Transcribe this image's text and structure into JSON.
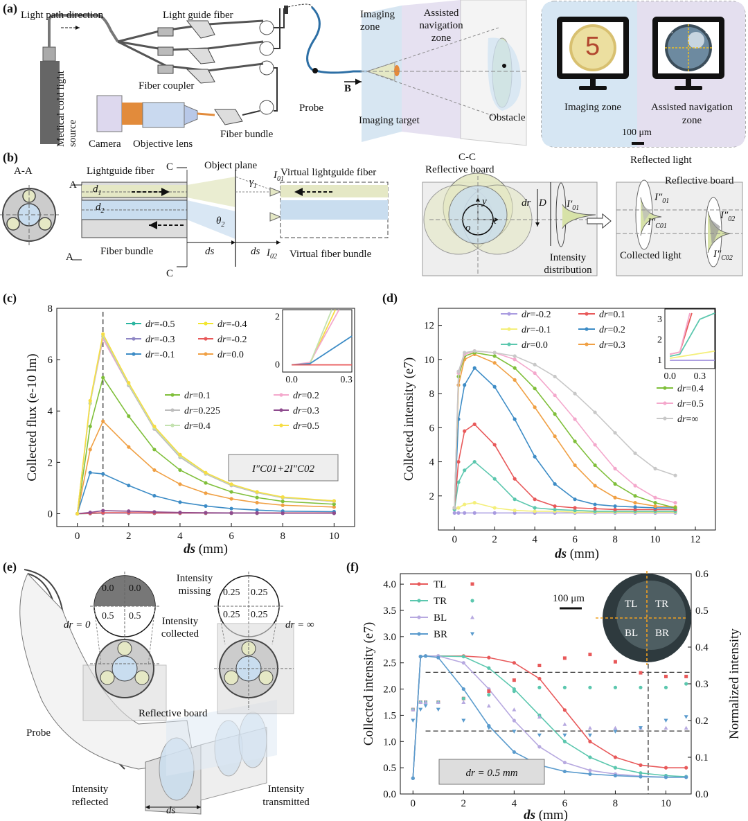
{
  "panel_labels": {
    "a": "(a)",
    "b": "(b)",
    "c": "(c)",
    "d": "(d)",
    "e": "(e)",
    "f": "(f)"
  },
  "panel_a": {
    "light_path_direction": "Light path direction",
    "light_guide_fiber": "Light guide fiber",
    "medical_cold_light_source": "Medical cold light source",
    "fiber_coupler": "Fiber coupler",
    "camera": "Camera",
    "objective_lens": "Objective lens",
    "fiber_bundle": "Fiber bundle",
    "probe": "Probe",
    "b_marker": "B",
    "imaging_zone": "Imaging zone",
    "assisted_navigation_zone": "Assisted navigation zone",
    "imaging_target": "Imaging target",
    "obstacle": "Obstacle",
    "monitor_imaging_zone": "Imaging zone",
    "monitor_assisted_navigation_zone": "Assisted navigation zone",
    "digit": "5",
    "quadrants": [
      "TL",
      "TR",
      "BL",
      "BR"
    ],
    "scale_bar": "100 μm"
  },
  "panel_b": {
    "aa": "A-A",
    "a_marker": "A",
    "c_marker": "C",
    "lightguide_fiber": "Lightguide fiber",
    "object_plane": "Object plane",
    "virtual_lightguide_fiber": "Virtual lightguide fiber",
    "d1": "d",
    "d1_sub": "1",
    "d2": "d",
    "d2_sub": "2",
    "gamma": "γ",
    "gamma_sub": "1",
    "theta": "θ",
    "theta_sub": "2",
    "i01": "I",
    "i01_sub": "01",
    "i02": "I",
    "i02_sub": "02",
    "ds": "ds",
    "fiber_bundle": "Fiber bundle",
    "virtual_fiber_bundle": "Virtual fiber bundle",
    "cc": "C-C",
    "reflective_board": "Reflective board",
    "dr": "dr",
    "D": "D",
    "y": "y",
    "x": "x",
    "o": "o",
    "i_prime_01": "I′",
    "i_prime_01_sub": "01",
    "intensity_distribution": "Intensity distribution",
    "reflected_light": "Reflected light",
    "reflective_board_2": "Reflective board",
    "i_dd_01": "I″",
    "i_dd_01_sub": "01",
    "i_dd_02": "I″",
    "i_dd_02_sub": "02",
    "i_dd_c01": "I″",
    "i_dd_c01_sub": "C01",
    "i_dd_c02": "I″",
    "i_dd_c02_sub": "C02",
    "collected_light": "Collected light"
  },
  "panel_e": {
    "intensity_missing": "Intensity missing",
    "intensity_collected": "Intensity collected",
    "dr0": "dr = 0",
    "drinf": "dr = ∞",
    "q_left": [
      "0.0",
      "0.0",
      "0.5",
      "0.5"
    ],
    "q_right": [
      "0.25",
      "0.25",
      "0.25",
      "0.25"
    ],
    "reflective_board": "Reflective board",
    "probe": "Probe",
    "intensity_reflected": "Intensity reflected",
    "intensity_transmitted": "Intensity transmitted",
    "ds": "ds"
  },
  "chart_data": [
    {
      "id": "c",
      "type": "line",
      "xlabel": "ds (mm)",
      "ylabel": "Collected flux (e-10 lm)",
      "xlim": [
        -0.8,
        10.8
      ],
      "ylim": [
        -0.5,
        8
      ],
      "xticks": [
        0,
        2,
        4,
        6,
        8,
        10
      ],
      "yticks": [
        0,
        2,
        4,
        6,
        8
      ],
      "vline": 1,
      "annotation": "I″C01+2I″C02",
      "series": [
        {
          "name": "dr=-0.5",
          "color": "#2bb5a0",
          "values": [
            0,
            0.01,
            0.02,
            0.02,
            0.02,
            0.02,
            0.02,
            0.02,
            0.02,
            0.02,
            0.02
          ]
        },
        {
          "name": "dr=-0.4",
          "color": "#f2e62f",
          "values": [
            0,
            0.01,
            0.02,
            0.02,
            0.02,
            0.02,
            0.02,
            0.02,
            0.02,
            0.02,
            0.02
          ]
        },
        {
          "name": "dr=-0.3",
          "color": "#8e86c4",
          "values": [
            0,
            0.01,
            0.02,
            0.02,
            0.02,
            0.02,
            0.02,
            0.02,
            0.02,
            0.02,
            0.02
          ]
        },
        {
          "name": "dr=-0.2",
          "color": "#e8595a",
          "values": [
            0,
            0.02,
            0.04,
            0.04,
            0.03,
            0.03,
            0.03,
            0.03,
            0.03,
            0.03,
            0.03
          ]
        },
        {
          "name": "dr=-0.1",
          "color": "#3d8cc6",
          "values": [
            0,
            1.6,
            1.55,
            1.1,
            0.7,
            0.45,
            0.3,
            0.2,
            0.14,
            0.1,
            0.08
          ]
        },
        {
          "name": "dr=0.0",
          "color": "#f0a044",
          "values": [
            0,
            2.5,
            3.6,
            2.6,
            1.7,
            1.15,
            0.8,
            0.58,
            0.43,
            0.33,
            0.26
          ]
        },
        {
          "name": "dr=0.1",
          "color": "#7fbf3a",
          "values": [
            0,
            3.4,
            5.3,
            3.8,
            2.5,
            1.7,
            1.2,
            0.85,
            0.63,
            0.48,
            0.37
          ]
        },
        {
          "name": "dr=0.2",
          "color": "#f4a8cc",
          "values": [
            0,
            4.3,
            6.8,
            5.0,
            3.3,
            2.2,
            1.55,
            1.1,
            0.82,
            0.62,
            0.48
          ]
        },
        {
          "name": "dr=0.225",
          "color": "#bdbdbd",
          "values": [
            0,
            4.3,
            6.9,
            5.0,
            3.3,
            2.2,
            1.55,
            1.1,
            0.82,
            0.62,
            0.48
          ]
        },
        {
          "name": "dr=0.3",
          "color": "#8e4b8e",
          "values": [
            0,
            0.05,
            0.12,
            0.1,
            0.07,
            0.05,
            0.04,
            0.03,
            0.03,
            0.02,
            0.02
          ]
        },
        {
          "name": "dr=0.4",
          "color": "#c4e2b0",
          "values": [
            0,
            4.3,
            6.95,
            5.05,
            3.35,
            2.25,
            1.58,
            1.13,
            0.84,
            0.63,
            0.5
          ]
        },
        {
          "name": "dr=0.5",
          "color": "#f6dd44",
          "values": [
            0,
            4.4,
            7.0,
            5.1,
            3.4,
            2.3,
            1.6,
            1.15,
            0.85,
            0.65,
            0.5
          ]
        }
      ],
      "x": [
        0,
        0.5,
        1,
        2,
        3,
        4,
        5,
        6,
        7,
        8,
        10
      ],
      "inset": {
        "xticks": [
          "0.0",
          "0.3"
        ],
        "yticks": [
          "0",
          "2"
        ],
        "xlim": [
          -0.05,
          0.33
        ],
        "ylim": [
          -0.3,
          2.3
        ]
      },
      "legend_left": [
        "dr=-0.5",
        "dr=-0.3",
        "dr=-0.1"
      ],
      "legend_right": [
        "dr=-0.4",
        "dr=-0.2",
        "dr=0.0"
      ],
      "legend_mid_left": [
        "dr=0.1",
        "dr=0.225",
        "dr=0.4"
      ],
      "legend_mid_right": [
        "dr=0.2",
        "dr=0.3",
        "dr=0.5"
      ]
    },
    {
      "id": "d",
      "type": "line",
      "xlabel": "ds (mm)",
      "ylabel": "Collected intensity (e7)",
      "xlim": [
        -0.8,
        13
      ],
      "ylim": [
        0,
        13
      ],
      "xticks": [
        0,
        2,
        4,
        6,
        8,
        10,
        12
      ],
      "yticks": [
        2,
        4,
        6,
        8,
        10,
        12
      ],
      "x": [
        0,
        0.2,
        0.5,
        1,
        2,
        3,
        4,
        5,
        6,
        7,
        8,
        9,
        10,
        11
      ],
      "series": [
        {
          "name": "dr=-0.2",
          "color": "#a99be0",
          "values": [
            1.0,
            1.0,
            1.0,
            1.0,
            1.0,
            1.0,
            1.0,
            1.0,
            1.0,
            1.0,
            1.0,
            1.0,
            1.0,
            1.0
          ]
        },
        {
          "name": "dr=-0.1",
          "color": "#f4ef7a",
          "values": [
            1.2,
            1.3,
            1.5,
            1.6,
            1.3,
            1.15,
            1.1,
            1.1,
            1.05,
            1.05,
            1.05,
            1.05,
            1.05,
            1.05
          ]
        },
        {
          "name": "dr=0.0",
          "color": "#5bc7ae",
          "values": [
            1.2,
            2.8,
            3.5,
            4.0,
            3.0,
            1.8,
            1.3,
            1.2,
            1.15,
            1.1,
            1.1,
            1.1,
            1.1,
            1.1
          ]
        },
        {
          "name": "dr=0.1",
          "color": "#e8595a",
          "values": [
            1.3,
            4.0,
            5.8,
            6.2,
            5.0,
            3.0,
            1.8,
            1.4,
            1.3,
            1.25,
            1.2,
            1.2,
            1.2,
            1.2
          ]
        },
        {
          "name": "dr=0.2",
          "color": "#3d8cc6",
          "values": [
            1.3,
            6.5,
            8.5,
            9.5,
            8.4,
            6.5,
            4.3,
            2.7,
            1.8,
            1.5,
            1.4,
            1.35,
            1.3,
            1.3
          ]
        },
        {
          "name": "dr=0.3",
          "color": "#f0a044",
          "values": [
            1.3,
            8.5,
            10.0,
            10.3,
            9.8,
            8.8,
            7.2,
            5.5,
            3.8,
            2.6,
            1.9,
            1.6,
            1.4,
            1.35
          ]
        },
        {
          "name": "dr=0.4",
          "color": "#7fbf3a",
          "values": [
            1.3,
            9.0,
            10.2,
            10.4,
            10.2,
            9.5,
            8.3,
            6.8,
            5.2,
            3.8,
            2.7,
            2.0,
            1.6,
            1.3
          ]
        },
        {
          "name": "dr=0.5",
          "color": "#f4a8cc",
          "values": [
            1.3,
            9.2,
            10.3,
            10.5,
            10.4,
            10.0,
            9.2,
            7.9,
            6.5,
            5.0,
            3.6,
            2.6,
            1.9,
            1.6
          ]
        },
        {
          "name": "dr=∞",
          "color": "#c8c8c8",
          "values": [
            1.3,
            9.3,
            10.4,
            10.5,
            10.4,
            10.2,
            9.7,
            9.0,
            8.0,
            6.9,
            5.7,
            4.5,
            3.6,
            3.2
          ]
        }
      ],
      "inset": {
        "xticks": [
          "0.0",
          "0.3"
        ],
        "yticks": [
          "1",
          "2",
          "3"
        ],
        "xlim": [
          -0.05,
          0.45
        ],
        "ylim": [
          0.6,
          3.5
        ]
      },
      "legend_col1": [
        "dr=-0.2",
        "dr=-0.1",
        "dr=0.0"
      ],
      "legend_col2": [
        "dr=0.1",
        "dr=0.2",
        "dr=0.3"
      ],
      "legend_right": [
        "dr=0.4",
        "dr=0.5",
        "dr=∞"
      ]
    },
    {
      "id": "f",
      "type": "line",
      "xlabel": "ds (mm)",
      "ylabel": "Collected intensity (e7)",
      "ylabel2": "Normalized intensity",
      "xlim": [
        -0.5,
        11
      ],
      "ylim": [
        0,
        4.2
      ],
      "ylim2": [
        0,
        0.6
      ],
      "xticks": [
        0,
        2,
        4,
        6,
        8,
        10
      ],
      "yticks": [
        "0.0",
        "0.5",
        "1.0",
        "1.5",
        "2.0",
        "2.5",
        "3.0",
        "3.5",
        "4.0"
      ],
      "yticks2": [
        "0.0",
        "0.1",
        "0.2",
        "0.3",
        "0.4",
        "0.5",
        "0.6"
      ],
      "vline": 9.3,
      "hlines": [
        2.32,
        1.2
      ],
      "annotation": "dr = 0.5 mm",
      "scale_bar": "100 μm",
      "x": [
        0,
        0.3,
        0.5,
        1,
        2,
        3,
        4,
        5,
        6,
        7,
        8,
        9,
        10,
        10.8
      ],
      "series": [
        {
          "name": "TL",
          "color": "#e8595a",
          "values": [
            0.3,
            2.62,
            2.63,
            2.63,
            2.63,
            2.6,
            2.5,
            2.2,
            1.6,
            1.0,
            0.7,
            0.55,
            0.5,
            0.5
          ]
        },
        {
          "name": "TR",
          "color": "#5bc7ae",
          "values": [
            0.3,
            2.62,
            2.63,
            2.63,
            2.62,
            2.4,
            2.0,
            1.5,
            1.0,
            0.7,
            0.5,
            0.4,
            0.35,
            0.33
          ]
        },
        {
          "name": "BL",
          "color": "#b7a9e0",
          "values": [
            0.3,
            2.62,
            2.63,
            2.63,
            2.5,
            2.0,
            1.4,
            0.9,
            0.6,
            0.45,
            0.38,
            0.34,
            0.32,
            0.32
          ]
        },
        {
          "name": "BR",
          "color": "#5a9bcd",
          "values": [
            0.3,
            2.62,
            2.63,
            2.6,
            2.0,
            1.3,
            0.8,
            0.55,
            0.43,
            0.38,
            0.35,
            0.33,
            0.32,
            0.32
          ]
        }
      ],
      "normalized": [
        {
          "name": "TL",
          "color": "#e8595a",
          "marker": "square",
          "values": [
            0.23,
            0.25,
            0.25,
            0.25,
            0.26,
            0.28,
            0.31,
            0.35,
            0.37,
            0.38,
            0.36,
            0.33,
            0.32,
            0.32
          ]
        },
        {
          "name": "TR",
          "color": "#5bc7ae",
          "marker": "circle",
          "values": [
            0.23,
            0.25,
            0.25,
            0.25,
            0.26,
            0.27,
            0.28,
            0.29,
            0.29,
            0.29,
            0.29,
            0.29,
            0.29,
            0.3
          ]
        },
        {
          "name": "BL",
          "color": "#b7a9e0",
          "marker": "triangle",
          "values": [
            0.23,
            0.25,
            0.25,
            0.25,
            0.25,
            0.24,
            0.23,
            0.21,
            0.19,
            0.18,
            0.18,
            0.18,
            0.18,
            0.18
          ]
        },
        {
          "name": "BR",
          "color": "#5a9bcd",
          "marker": "triangle-down",
          "values": [
            0.2,
            0.23,
            0.24,
            0.23,
            0.2,
            0.18,
            0.17,
            0.16,
            0.16,
            0.16,
            0.17,
            0.18,
            0.2,
            0.21
          ]
        }
      ]
    }
  ]
}
